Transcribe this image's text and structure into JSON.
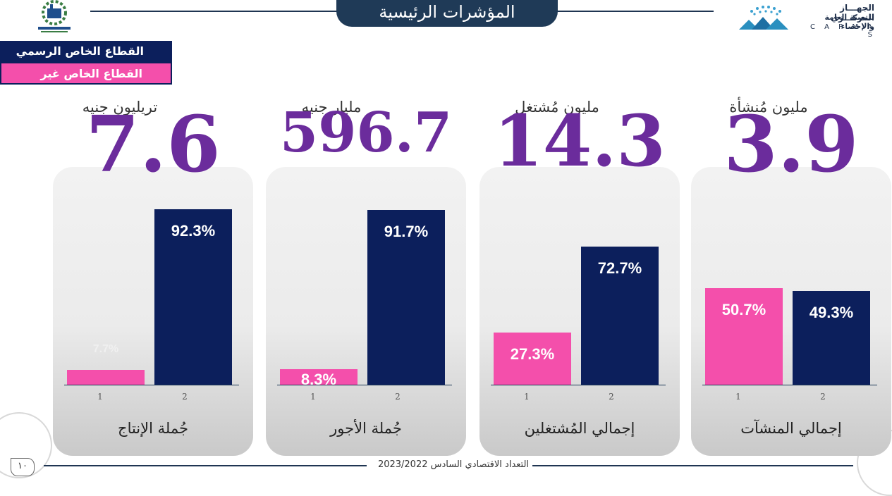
{
  "header": {
    "title": "المؤشرات الرئيسية",
    "org_line1": "الجهـــاز المركـــزي",
    "org_line2": "للتعبئة العامة والإحصاء",
    "org_latin": "C A P M A S"
  },
  "legend": {
    "formal": "القطاع الخاص الرسمي",
    "informal": "القطاع الخاص غير الرسمي",
    "formal_color": "#0c1f5c",
    "informal_color": "#f44fab"
  },
  "footer": {
    "text": "التعداد الاقتصادي السادس 2023/2022",
    "page": "١٠"
  },
  "chart_data": [
    {
      "type": "bar",
      "unit": "مليون مُنشأة",
      "total": "3.9",
      "label": "إجمالي المنشآت",
      "categories": [
        "1",
        "2"
      ],
      "values": [
        50.7,
        49.3
      ],
      "value_labels": [
        "50.7%",
        "49.3%"
      ],
      "colors": [
        "#f44fab",
        "#0c1f5c"
      ]
    },
    {
      "type": "bar",
      "unit": "مليون مُشتغل",
      "total": "14.3",
      "label": "إجمالي المُشتغلين",
      "categories": [
        "1",
        "2"
      ],
      "values": [
        27.3,
        72.7
      ],
      "value_labels": [
        "27.3%",
        "72.7%"
      ],
      "colors": [
        "#f44fab",
        "#0c1f5c"
      ]
    },
    {
      "type": "bar",
      "unit": "مليار جنيه",
      "total": "596.7",
      "label": "جُملة الأجور",
      "categories": [
        "1",
        "2"
      ],
      "values": [
        8.3,
        91.7
      ],
      "value_labels": [
        "8.3%",
        "91.7%"
      ],
      "colors": [
        "#f44fab",
        "#0c1f5c"
      ]
    },
    {
      "type": "bar",
      "unit": "تريليون جنيه",
      "total": "7.6",
      "label": "جُملة الإنتاج",
      "categories": [
        "1",
        "2"
      ],
      "values": [
        7.7,
        92.3
      ],
      "value_labels": [
        "7.7%",
        "92.3%"
      ],
      "colors": [
        "#f44fab",
        "#0c1f5c"
      ]
    }
  ]
}
